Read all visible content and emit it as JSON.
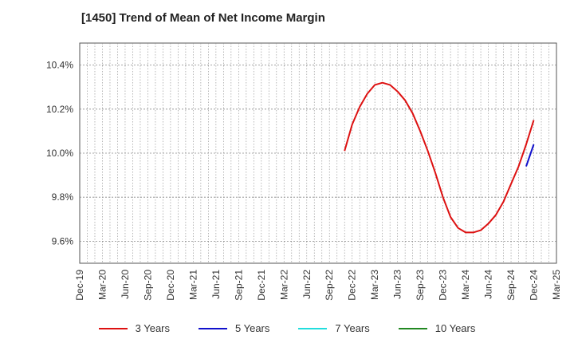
{
  "chart_data": {
    "type": "line",
    "title": "[1450]  Trend of Mean of Net Income Margin",
    "xlabel": "",
    "ylabel": "",
    "ylim": [
      9.5,
      10.5
    ],
    "yticks": [
      "9.6%",
      "9.8%",
      "10.0%",
      "10.2%",
      "10.4%"
    ],
    "ytick_values": [
      9.6,
      9.8,
      10.0,
      10.2,
      10.4
    ],
    "xticks": [
      "Dec-19",
      "Mar-20",
      "Jun-20",
      "Sep-20",
      "Dec-20",
      "Mar-21",
      "Jun-21",
      "Sep-21",
      "Dec-21",
      "Mar-22",
      "Jun-22",
      "Sep-22",
      "Dec-22",
      "Mar-23",
      "Jun-23",
      "Sep-23",
      "Dec-23",
      "Mar-24",
      "Jun-24",
      "Sep-24",
      "Dec-24",
      "Mar-25"
    ],
    "grid": true,
    "legend_position": "bottom",
    "series": [
      {
        "name": "3 Years",
        "color": "#dd1111",
        "x": [
          "Nov-22",
          "Dec-22",
          "Jan-23",
          "Feb-23",
          "Mar-23",
          "Apr-23",
          "May-23",
          "Jun-23",
          "Jul-23",
          "Aug-23",
          "Sep-23",
          "Oct-23",
          "Nov-23",
          "Dec-23",
          "Jan-24",
          "Feb-24",
          "Mar-24",
          "Apr-24",
          "May-24",
          "Jun-24",
          "Jul-24",
          "Aug-24",
          "Sep-24",
          "Oct-24",
          "Nov-24",
          "Dec-24"
        ],
        "values": [
          10.01,
          10.13,
          10.21,
          10.27,
          10.31,
          10.32,
          10.31,
          10.28,
          10.24,
          10.18,
          10.1,
          10.01,
          9.91,
          9.8,
          9.71,
          9.66,
          9.64,
          9.64,
          9.65,
          9.68,
          9.72,
          9.78,
          9.86,
          9.94,
          10.04,
          10.15
        ]
      },
      {
        "name": "5 Years",
        "color": "#1111cc",
        "x": [
          "Nov-24",
          "Dec-24"
        ],
        "values": [
          9.94,
          10.04
        ]
      },
      {
        "name": "7 Years",
        "color": "#22dddd",
        "x": [],
        "values": []
      },
      {
        "name": "10 Years",
        "color": "#228822",
        "x": [],
        "values": []
      }
    ]
  }
}
